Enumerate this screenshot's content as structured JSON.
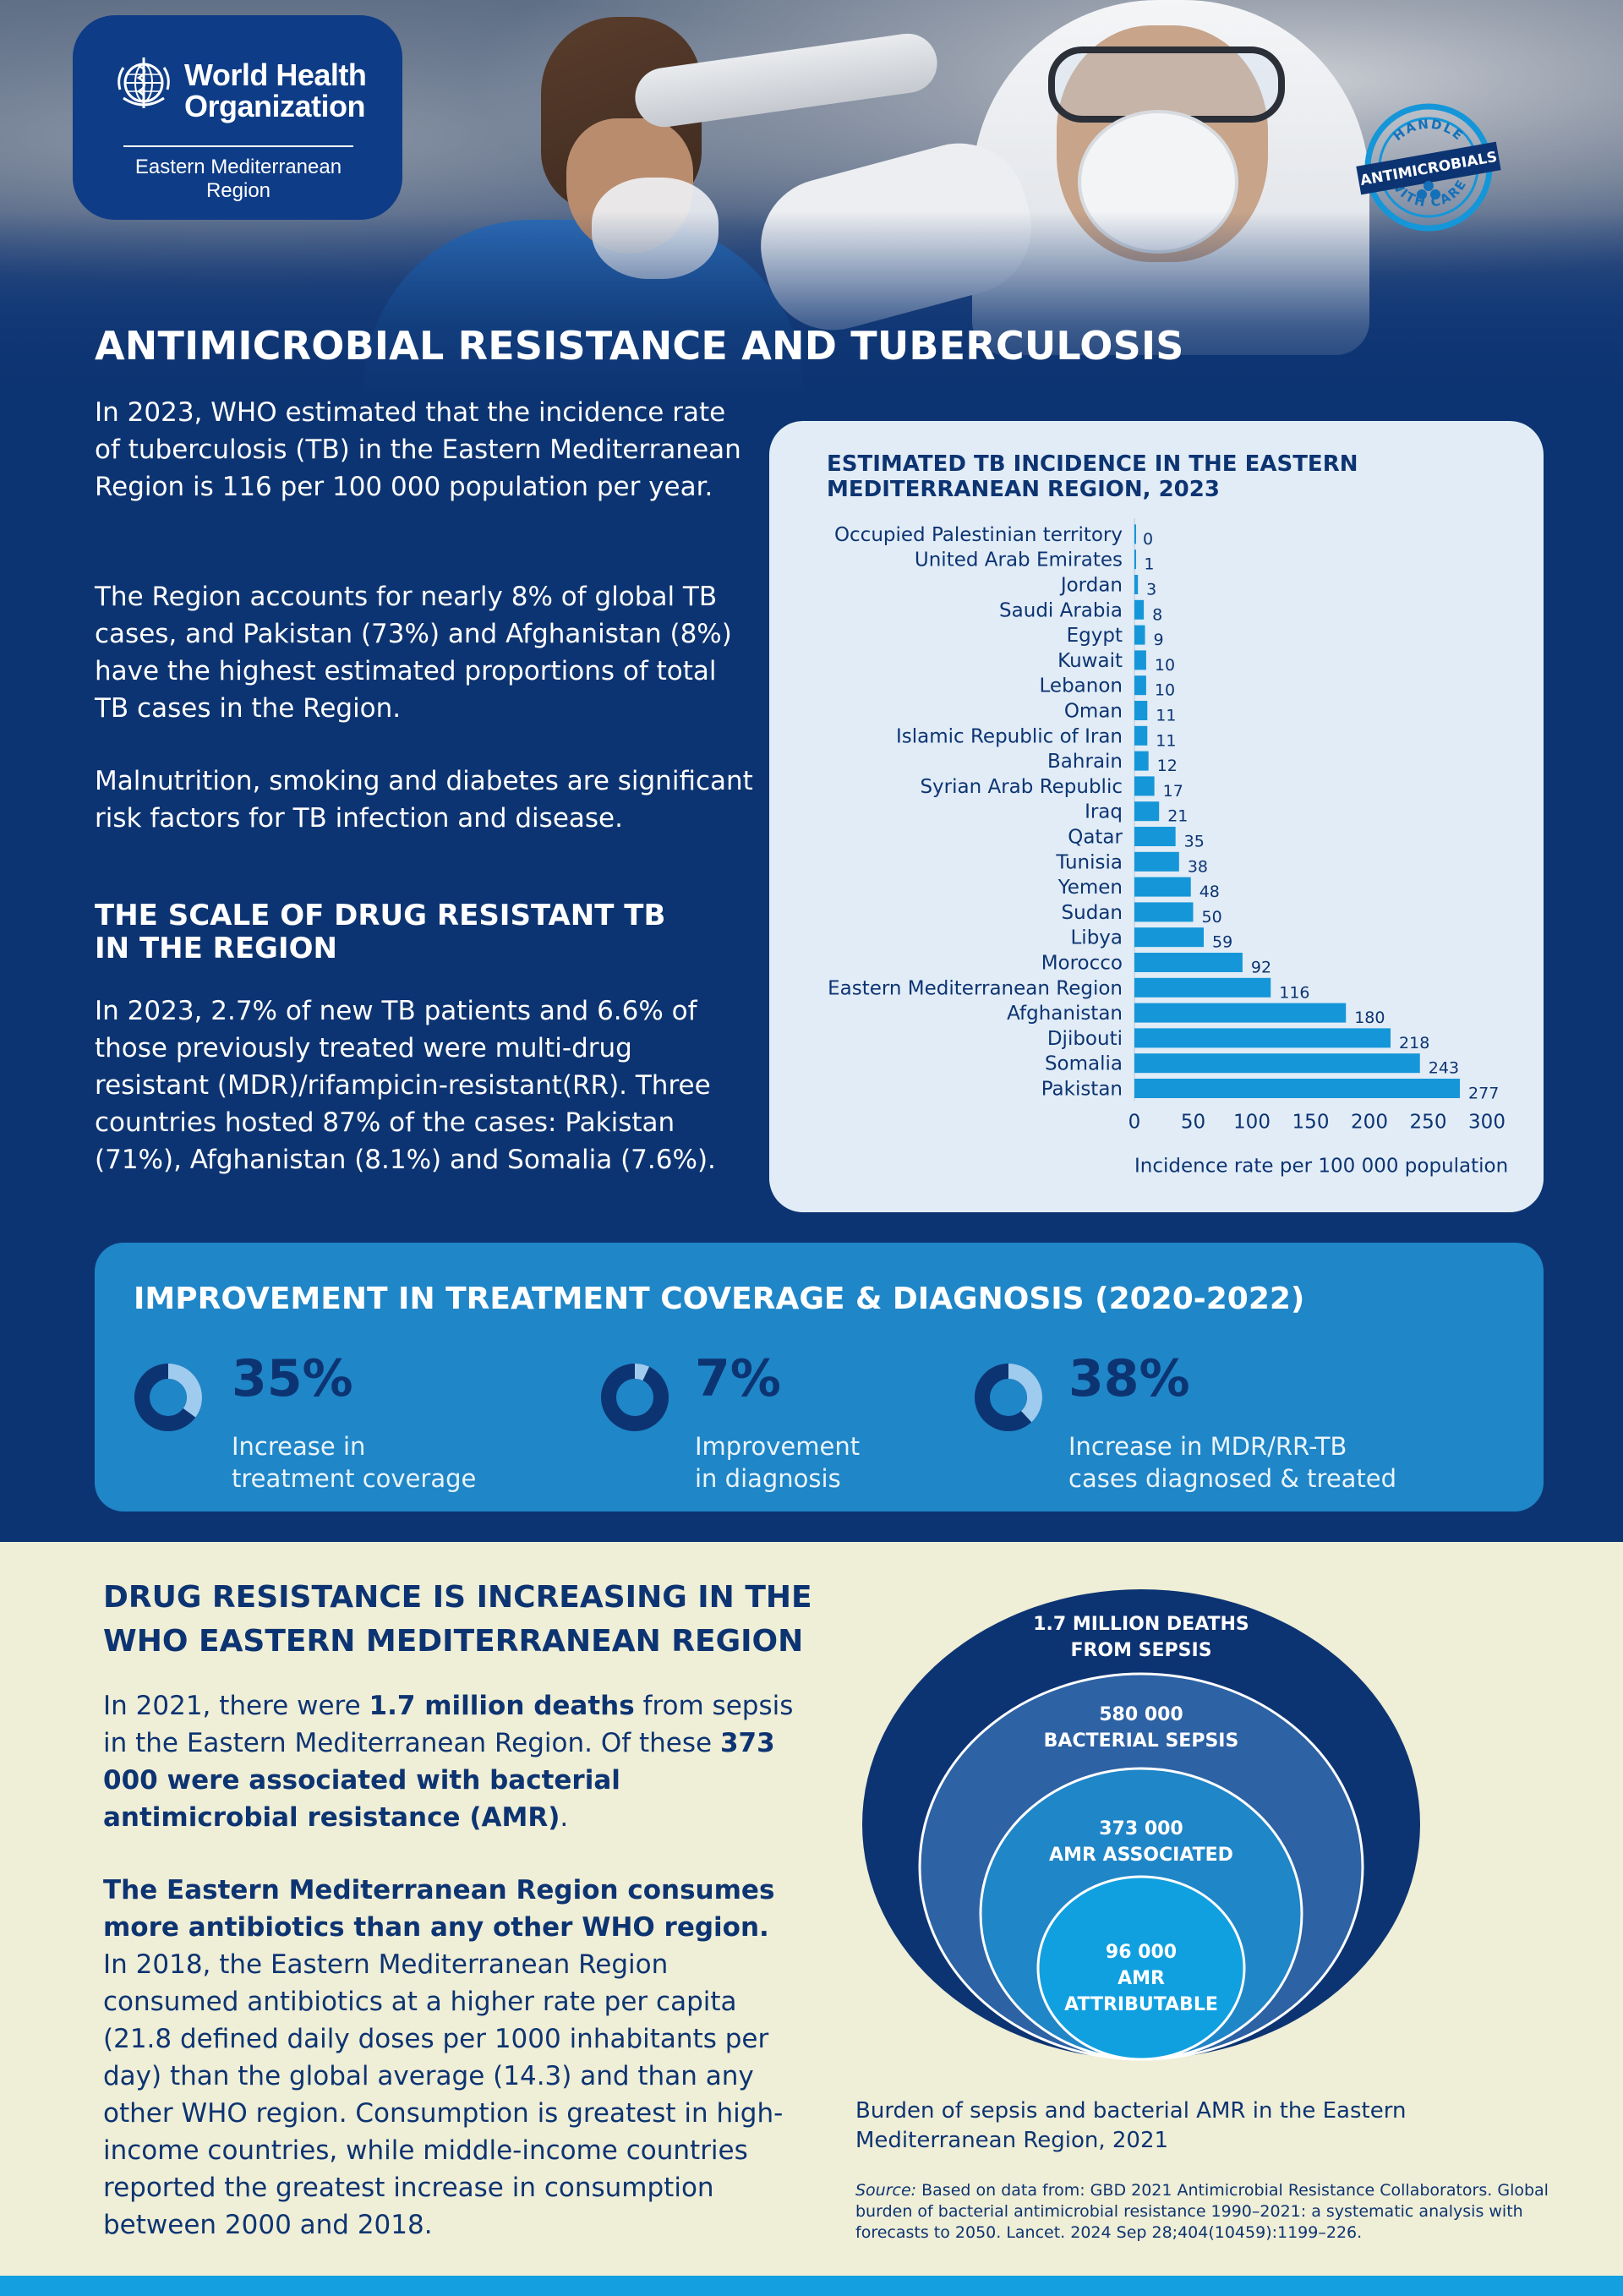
{
  "logo": {
    "name_line1": "World Health",
    "name_line2": "Organization",
    "region": "Eastern Mediterranean Region"
  },
  "badge": {
    "top_text": "HANDLE",
    "banner_text": "ANTIMICROBIALS",
    "bottom_text": "WITH CARE"
  },
  "main_title": "ANTIMICROBIAL RESISTANCE AND TUBERCULOSIS",
  "intro": {
    "p1": "In 2023, WHO estimated that the incidence rate of tuberculosis (TB) in the Eastern Mediterranean Region is 116 per 100 000 population per year.",
    "p2": "The Region accounts for nearly 8% of global TB cases, and Pakistan (73%) and Afghanistan (8%) have the highest estimated proportions of total TB cases in the Region.",
    "p3": "Malnutrition, smoking and diabetes are significant risk factors for TB infection and disease."
  },
  "scale": {
    "heading_line1": "THE SCALE OF DRUG RESISTANT TB",
    "heading_line2": "IN THE REGION",
    "text": "In 2023, 2.7% of new TB patients and 6.6% of those previously treated were multi-drug resistant (MDR)/rifampicin-resistant(RR). Three countries hosted 87% of the cases: Pakistan (71%), Afghanistan (8.1%) and Somalia (7.6%)."
  },
  "chart_data": {
    "type": "bar",
    "orientation": "horizontal",
    "title": "ESTIMATED TB INCIDENCE IN THE EASTERN MEDITERRANEAN REGION, 2023",
    "title_line1": "ESTIMATED TB INCIDENCE IN THE EASTERN",
    "title_line2": "MEDITERRANEAN REGION, 2023",
    "xlabel": "Incidence rate per 100 000 population",
    "xlim": [
      0,
      300
    ],
    "xticks": [
      0,
      50,
      100,
      150,
      200,
      250,
      300
    ],
    "bar_color": "#1596d8",
    "categories": [
      "Occupied Palestinian territory",
      "United Arab Emirates",
      "Jordan",
      "Saudi Arabia",
      "Egypt",
      "Kuwait",
      "Lebanon",
      "Oman",
      "Islamic Republic of Iran",
      "Bahrain",
      "Syrian Arab Republic",
      "Iraq",
      "Qatar",
      "Tunisia",
      "Yemen",
      "Sudan",
      "Libya",
      "Morocco",
      "Eastern Mediterranean Region",
      "Afghanistan",
      "Djibouti",
      "Somalia",
      "Pakistan"
    ],
    "values": [
      0,
      1,
      3,
      8,
      9,
      10,
      10,
      11,
      11,
      12,
      17,
      21,
      35,
      38,
      48,
      50,
      59,
      92,
      116,
      180,
      218,
      243,
      277
    ]
  },
  "improvement": {
    "title": "IMPROVEMENT IN TREATMENT COVERAGE & DIAGNOSIS (2020-2022)",
    "stats": [
      {
        "value": "35%",
        "fraction": 0.35,
        "label_line1": "Increase in",
        "label_line2": "treatment coverage"
      },
      {
        "value": "7%",
        "fraction": 0.07,
        "label_line1": "Improvement",
        "label_line2": "in diagnosis"
      },
      {
        "value": "38%",
        "fraction": 0.38,
        "label_line1": "Increase in MDR/RR-TB",
        "label_line2": "cases diagnosed & treated"
      }
    ]
  },
  "drug": {
    "title_line1": "DRUG RESISTANCE IS INCREASING IN THE",
    "title_line2": "WHO EASTERN MEDITERRANEAN REGION",
    "p1_a": "In 2021, there were ",
    "p1_b": "1.7 million deaths",
    "p1_c": " from sepsis in the Eastern Mediterranean Region. Of these ",
    "p1_d": "373 000 were associated with bacterial antimicrobial resistance (AMR)",
    "p1_e": ".",
    "p2_bold": "The Eastern Mediterranean Region consumes more antibiotics than any other WHO region.",
    "p2_text": "In 2018, the Eastern Mediterranean Region consumed antibiotics at a higher rate per capita (21.8 defined daily doses per 1000 inhabitants per day) than the global average (14.3) and than any other WHO region. Consumption is greatest in high-income countries, while middle-income countries reported the greatest increase in consumption between 2000 and 2018."
  },
  "circles": {
    "c1_line1": "1.7 MILLION DEATHS",
    "c1_line2": "FROM SEPSIS",
    "c2_line1": "580 000",
    "c2_line2": "BACTERIAL SEPSIS",
    "c3_line1": "373 000",
    "c3_line2": "AMR ASSOCIATED",
    "c4_line1": "96 000",
    "c4_line2": "AMR",
    "c4_line3": "ATTRIBUTABLE",
    "colors": [
      "#0d3472",
      "#2d62a4",
      "#1f86c8",
      "#10a0e0"
    ],
    "caption": "Burden of sepsis and bacterial AMR in the Eastern Mediterranean Region, 2021"
  },
  "source": {
    "label": "Source:",
    "text": " Based on data from: GBD 2021 Antimicrobial Resistance Collaborators. Global burden of bacterial antimicrobial resistance 1990–2021: a systematic analysis with forecasts to 2050. Lancet. 2024 Sep 28;404(10459):1199–226."
  }
}
